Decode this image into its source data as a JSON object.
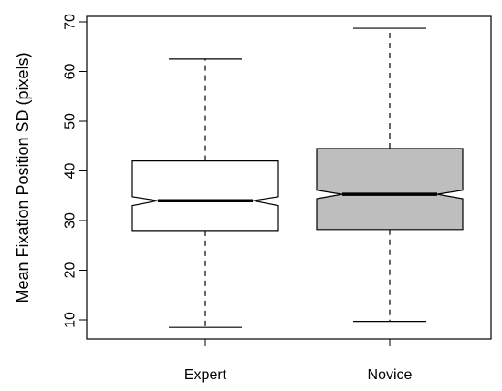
{
  "chart_data": {
    "type": "boxplot",
    "title": "",
    "xlabel": "",
    "ylabel": "Mean Fixation Position SD (pixels)",
    "ylim": [
      4,
      70
    ],
    "yticks": [
      10,
      20,
      30,
      40,
      50,
      60,
      70
    ],
    "notched": true,
    "categories": [
      "Expert",
      "Novice"
    ],
    "boxes": [
      {
        "label": "Expert",
        "min": 8.5,
        "q1": 28.0,
        "median": 34.0,
        "q3": 42.0,
        "max": 62.5,
        "notch_low": 33.0,
        "notch_high": 34.8,
        "fill": "#ffffff"
      },
      {
        "label": "Novice",
        "min": 9.7,
        "q1": 28.2,
        "median": 35.3,
        "q3": 44.5,
        "max": 68.7,
        "notch_low": 34.4,
        "notch_high": 36.1,
        "fill": "#bebebe"
      }
    ]
  }
}
